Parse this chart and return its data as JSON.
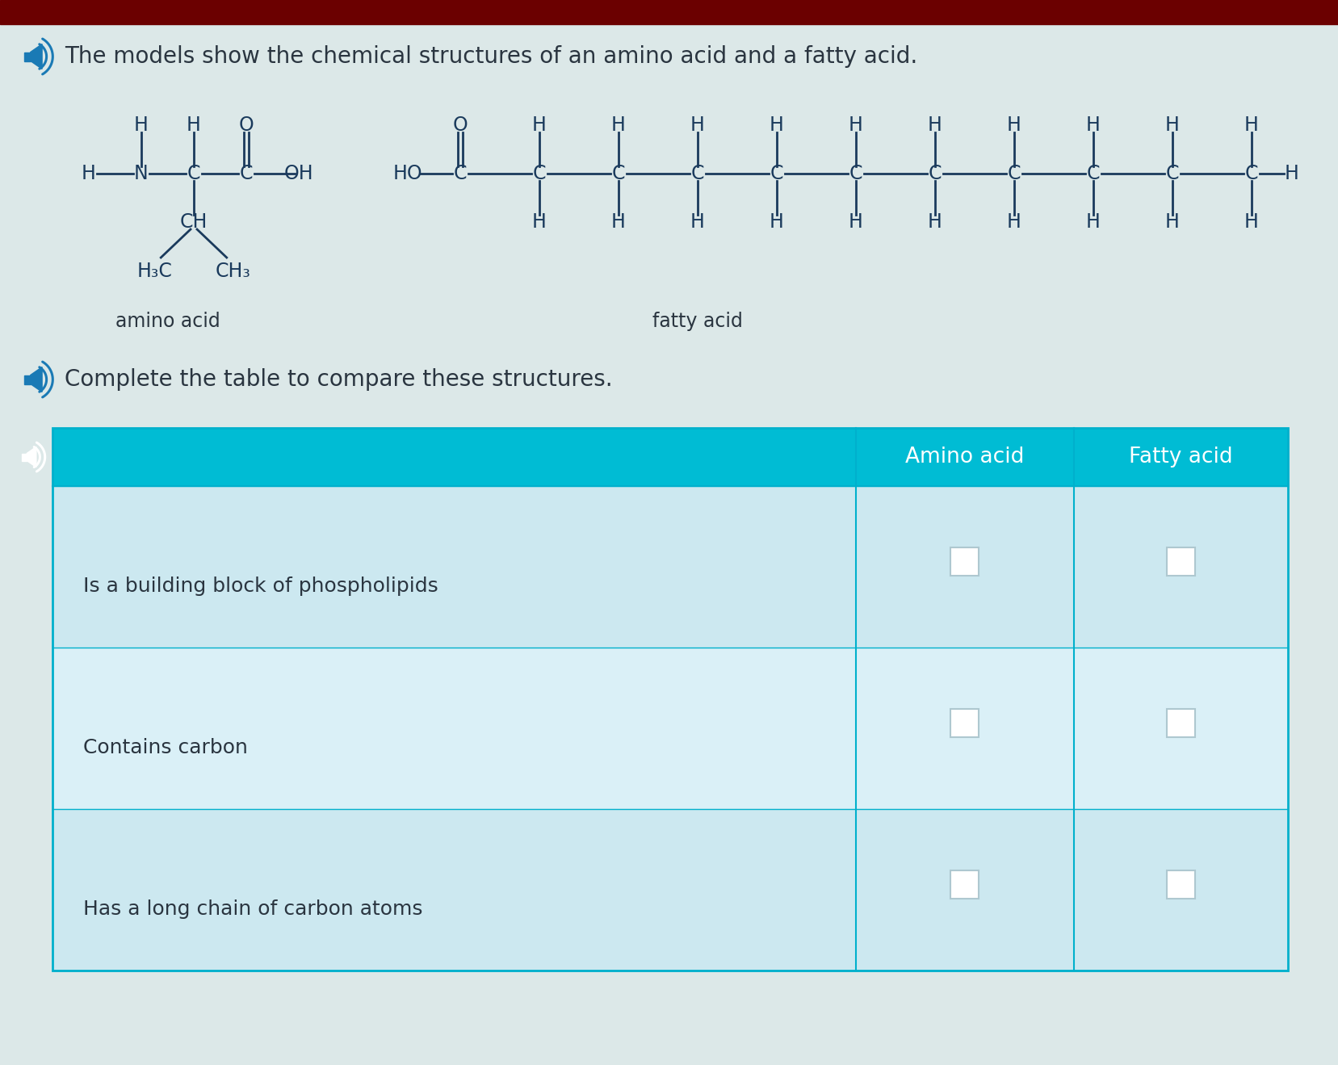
{
  "page_bg": "#dce8e8",
  "top_bar_color": "#6b0000",
  "header_text": "The models show the chemical structures of an amino acid and a fatty acid.",
  "header_fontsize": 20,
  "instruction_text": "Complete the table to compare these structures.",
  "instruction_fontsize": 20,
  "amino_acid_label": "amino acid",
  "fatty_acid_label": "fatty acid",
  "table_header_bg": "#00bcd4",
  "table_header_text_color": "#ffffff",
  "table_row_bg_odd": "#cce8f0",
  "table_row_bg_even": "#daf0f7",
  "table_border_color": "#00b0cc",
  "table_col2": "Amino acid",
  "table_col3": "Fatty acid",
  "table_rows": [
    "Is a building block of phospholipids",
    "Contains carbon",
    "Has a long chain of carbon atoms"
  ],
  "text_color_dark": "#2a3540",
  "chem_color": "#1a3a5c",
  "speaker_color": "#1a7ab5",
  "n_carbons_fatty": 11
}
